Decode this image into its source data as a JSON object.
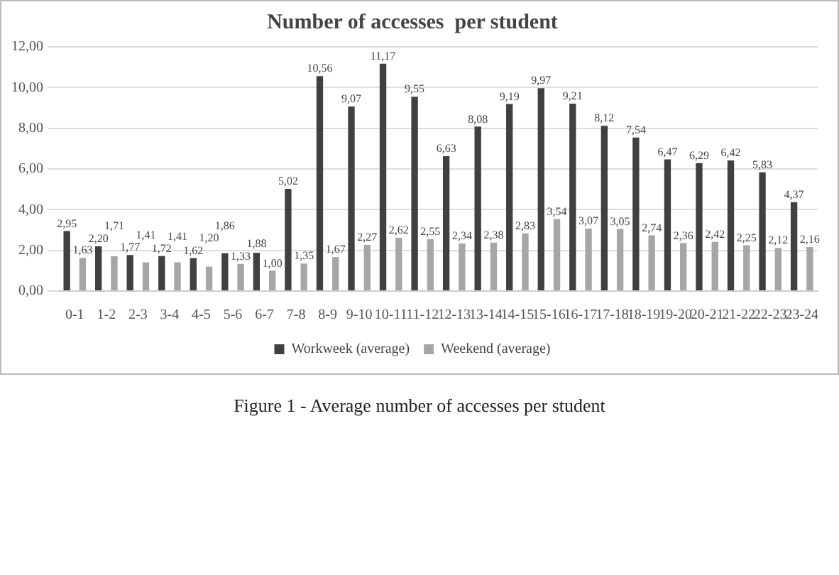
{
  "chart_data": {
    "type": "bar",
    "title": "Number of accesses  per student",
    "categories": [
      "0-1",
      "1-2",
      "2-3",
      "3-4",
      "4-5",
      "5-6",
      "6-7",
      "7-8",
      "8-9",
      "9-10",
      "10-11",
      "11-12",
      "12-13",
      "13-14",
      "14-15",
      "15-16",
      "16-17",
      "17-18",
      "18-19",
      "19-20",
      "20-21",
      "21-22",
      "22-23",
      "23-24"
    ],
    "series": [
      {
        "name": "Workweek (average)",
        "color": "#404040",
        "values": [
          2.95,
          2.2,
          1.77,
          1.72,
          1.62,
          1.86,
          1.88,
          5.02,
          10.56,
          9.07,
          11.17,
          9.55,
          6.63,
          8.08,
          9.19,
          9.97,
          9.21,
          8.12,
          7.54,
          6.47,
          6.29,
          6.42,
          5.83,
          4.37
        ],
        "value_labels": [
          "2,95",
          "2,20",
          "1,77",
          "1,72",
          "1,62",
          "1,86",
          "1,88",
          "5,02",
          "10,56",
          "9,07",
          "11,17",
          "9,55",
          "6,63",
          "8,08",
          "9,19",
          "9,97",
          "9,21",
          "8,12",
          "7,54",
          "6,47",
          "6,29",
          "6,42",
          "5,83",
          "4,37"
        ]
      },
      {
        "name": "Weekend (average)",
        "color": "#a6a6a6",
        "values": [
          1.63,
          1.71,
          1.41,
          1.41,
          1.2,
          1.33,
          1.0,
          1.35,
          1.67,
          2.27,
          2.62,
          2.55,
          2.34,
          2.38,
          2.83,
          3.54,
          3.07,
          3.05,
          2.74,
          2.36,
          2.42,
          2.25,
          2.12,
          2.16
        ],
        "value_labels": [
          "1,63",
          "1,71",
          "1,41",
          "1,41",
          "1,20",
          "1,33",
          "1,00",
          "1,35",
          "1,67",
          "2,27",
          "2,62",
          "2,55",
          "2,34",
          "2,38",
          "2,83",
          "3,54",
          "3,07",
          "3,05",
          "2,74",
          "2,36",
          "2,42",
          "2,25",
          "2,12",
          "2,16"
        ]
      }
    ],
    "ylim": [
      0,
      12
    ],
    "yticks": [
      {
        "value": 0,
        "label": "0,00"
      },
      {
        "value": 2,
        "label": "2,00"
      },
      {
        "value": 4,
        "label": "4,00"
      },
      {
        "value": 6,
        "label": "6,00"
      },
      {
        "value": 8,
        "label": "8,00"
      },
      {
        "value": 10,
        "label": "10,00"
      },
      {
        "value": 12,
        "label": "12,00"
      }
    ],
    "grid": "y",
    "legend": "bottom",
    "annotations": [
      "Figure 1 - Average number of accesses per student"
    ]
  }
}
